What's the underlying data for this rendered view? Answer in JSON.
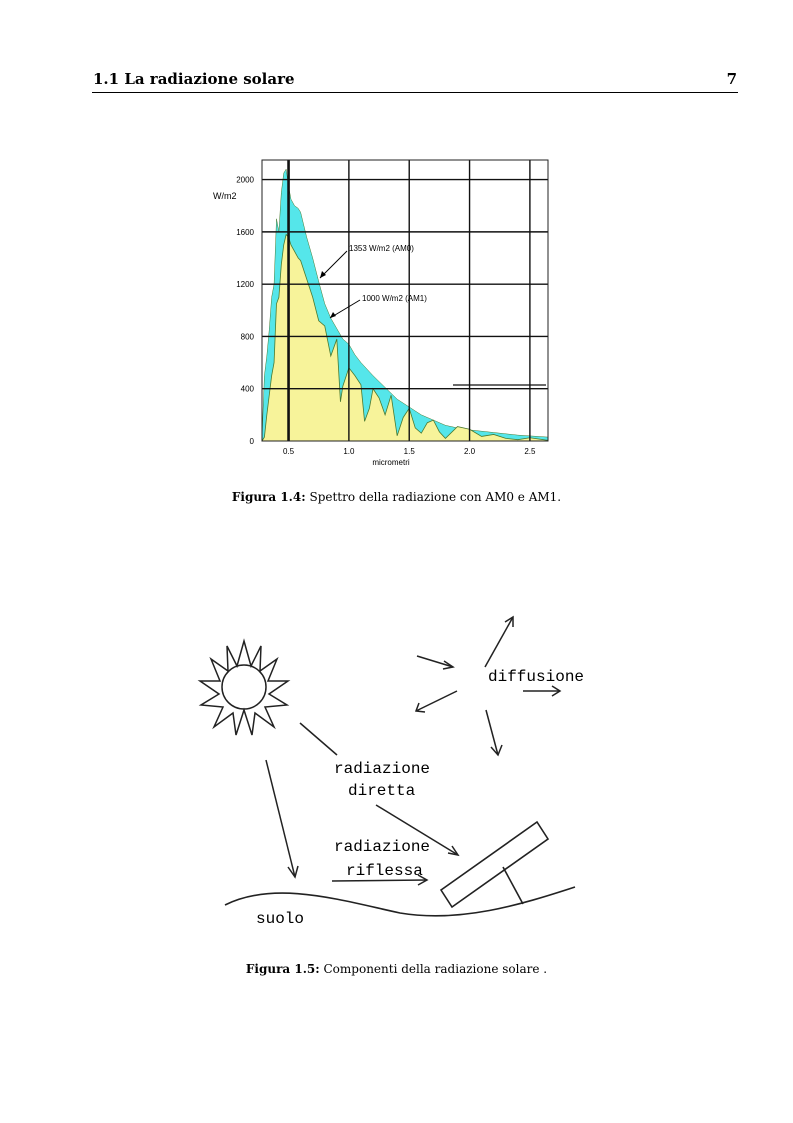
{
  "header": {
    "section_title": "1.1 La radiazione solare",
    "page_number": "7"
  },
  "figure_1_4": {
    "label": "Figura 1.4:",
    "caption": "Spettro della radiazione con AM0 e AM1.",
    "ylabel": "W/m2",
    "xlabel": "micrometri",
    "annotation_am0": "1353 W/m2 (AM0)",
    "annotation_am1": "1000 W/m2 (AM1)"
  },
  "chart_data": {
    "type": "area",
    "xlabel": "micrometri",
    "ylabel": "W/m2",
    "xlim": [
      0.28,
      2.65
    ],
    "ylim": [
      0,
      2150
    ],
    "x_ticks": [
      "0.5",
      "1.0",
      "1.5",
      "2.0",
      "2.5"
    ],
    "y_ticks": [
      "0",
      "400",
      "800",
      "1200",
      "1600",
      "2000"
    ],
    "grid": true,
    "series": [
      {
        "name": "1353 W/m2 (AM0)",
        "color": "#55e6ea",
        "x": [
          0.28,
          0.3,
          0.32,
          0.34,
          0.36,
          0.38,
          0.4,
          0.42,
          0.44,
          0.46,
          0.48,
          0.5,
          0.52,
          0.55,
          0.58,
          0.6,
          0.65,
          0.7,
          0.75,
          0.8,
          0.85,
          0.9,
          0.95,
          1.0,
          1.05,
          1.1,
          1.2,
          1.3,
          1.4,
          1.5,
          1.6,
          1.7,
          1.8,
          1.9,
          2.0,
          2.2,
          2.4,
          2.65
        ],
        "y": [
          20,
          500,
          650,
          850,
          1100,
          1200,
          1700,
          1600,
          1900,
          2050,
          2080,
          1950,
          1850,
          1800,
          1780,
          1750,
          1560,
          1400,
          1220,
          1050,
          940,
          860,
          780,
          740,
          660,
          600,
          500,
          410,
          320,
          260,
          200,
          160,
          120,
          100,
          85,
          65,
          45,
          30
        ]
      },
      {
        "name": "1000 W/m2 (AM1)",
        "color": "#f7f39a",
        "x": [
          0.28,
          0.3,
          0.32,
          0.34,
          0.36,
          0.38,
          0.4,
          0.42,
          0.44,
          0.46,
          0.48,
          0.5,
          0.52,
          0.55,
          0.58,
          0.6,
          0.65,
          0.7,
          0.75,
          0.8,
          0.85,
          0.9,
          0.93,
          0.95,
          1.0,
          1.05,
          1.1,
          1.13,
          1.17,
          1.2,
          1.25,
          1.3,
          1.35,
          1.4,
          1.45,
          1.5,
          1.55,
          1.6,
          1.65,
          1.7,
          1.75,
          1.8,
          1.9,
          2.0,
          2.1,
          2.2,
          2.3,
          2.4,
          2.5,
          2.65
        ],
        "y": [
          0,
          30,
          200,
          350,
          500,
          600,
          1050,
          1100,
          1350,
          1500,
          1580,
          1560,
          1500,
          1450,
          1400,
          1380,
          1240,
          1100,
          920,
          880,
          650,
          780,
          300,
          420,
          560,
          500,
          430,
          150,
          250,
          400,
          330,
          200,
          350,
          40,
          180,
          250,
          100,
          60,
          140,
          160,
          70,
          20,
          110,
          90,
          35,
          50,
          20,
          10,
          25,
          5
        ]
      }
    ]
  },
  "figure_1_5": {
    "label": "Figura 1.5:",
    "caption": "Componenti della radiazione solare .",
    "labels": {
      "diffusione": "diffusione",
      "radiazione_diretta_1": "radiazione",
      "radiazione_diretta_2": "diretta",
      "radiazione_riflessa_1": "radiazione",
      "radiazione_riflessa_2": "riflessa",
      "suolo": "suolo"
    }
  }
}
